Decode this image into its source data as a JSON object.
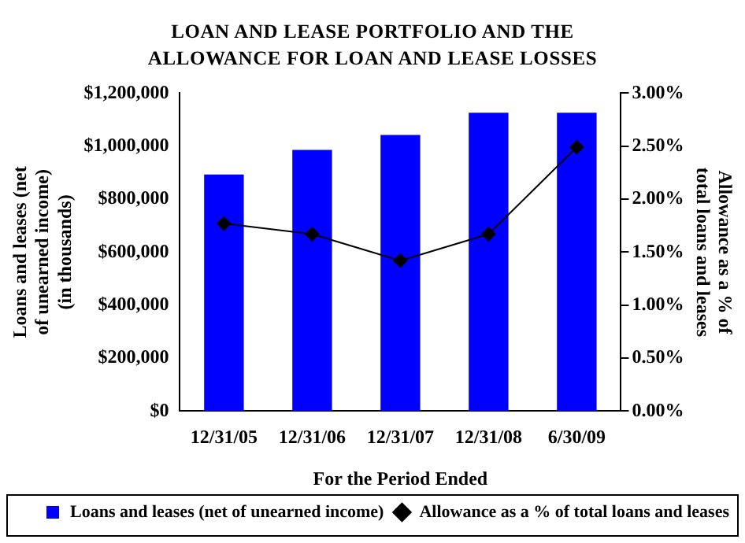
{
  "chart_data": {
    "type": "bar",
    "title": "LOAN AND LEASE PORTFOLIO AND THE ALLOWANCE FOR LOAN AND LEASE LOSSES",
    "categories": [
      "12/31/05",
      "12/31/06",
      "12/31/07",
      "12/31/08",
      "6/30/09"
    ],
    "xlabel": "For the Period Ended",
    "ylabel": "Loans and leases (net of unearned income) (in thousands)",
    "y2label": "Allowance as a % of total loans and leases",
    "series": [
      {
        "name": "Loans and leases (net of unearned income)",
        "color": "#0000ff",
        "values": [
          893000,
          986000,
          1042000,
          1126000,
          1126000
        ]
      },
      {
        "name": "Allowance as a % of total loans and leases",
        "type": "line",
        "axis": "y2",
        "color": "#000000",
        "values": [
          1.77,
          1.67,
          1.42,
          1.67,
          2.49
        ]
      }
    ],
    "ylim": [
      0,
      1200000
    ],
    "yticks": [
      {
        "value": 0,
        "label": "$0"
      },
      {
        "value": 200000,
        "label": "$200,000"
      },
      {
        "value": 400000,
        "label": "$400,000"
      },
      {
        "value": 600000,
        "label": "$600,000"
      },
      {
        "value": 800000,
        "label": "$800,000"
      },
      {
        "value": 1000000,
        "label": "$1,000,000"
      },
      {
        "value": 1200000,
        "label": "$1,200,000"
      }
    ],
    "y2lim": [
      0,
      3
    ],
    "y2ticks": [
      {
        "value": 0,
        "label": "0.00%"
      },
      {
        "value": 0.5,
        "label": "0.50%"
      },
      {
        "value": 1,
        "label": "1.00%"
      },
      {
        "value": 1.5,
        "label": "1.50%"
      },
      {
        "value": 2,
        "label": "2.00%"
      },
      {
        "value": 2.5,
        "label": "2.50%"
      },
      {
        "value": 3,
        "label": "3.00%"
      }
    ],
    "grid": false,
    "legend": "bottom",
    "marker": "diamond",
    "line_style": "solid"
  }
}
